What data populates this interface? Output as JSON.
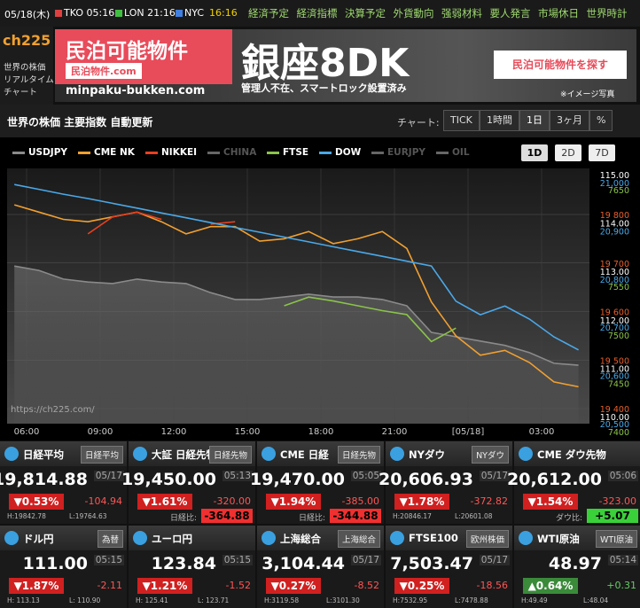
{
  "topbar": {
    "date": "05/18(木)",
    "clocks": [
      {
        "label": "TKO 05:16",
        "color": "#e04040"
      },
      {
        "label": "LON 21:16",
        "color": "#40c040"
      },
      {
        "label": "NYC",
        "time": "16:16",
        "color": "#4080e0"
      }
    ],
    "menu": [
      "経済予定",
      "経済指標",
      "決算予定",
      "外貨動向",
      "强弱材料",
      "要人発言",
      "市場休日",
      "世界時計"
    ]
  },
  "logo": {
    "title": "ch225",
    "tagline": [
      "世界の株価",
      "リアルタイム",
      "チャート"
    ]
  },
  "ad": {
    "headline": "民泊可能物件",
    "site_badge": "民泊物件.com",
    "big": "銀座8DK",
    "sub": "管理人不在、スマートロック設置済み",
    "url": "minpaku-bukken.com",
    "button": "民泊可能物件を探す",
    "note": "※イメージ写真"
  },
  "chart": {
    "title": "世界の株価 主要指数 自動更新",
    "range_label": "チャート:",
    "range_buttons": [
      "TICK",
      "1時間",
      "1日",
      "3ヶ月",
      "%"
    ],
    "selected_range": 2,
    "period_buttons": [
      "1D",
      "2D",
      "7D"
    ],
    "selected_period": 0,
    "watermark": "https://ch225.com/",
    "x_labels": [
      "06:00",
      "09:00",
      "12:00",
      "15:00",
      "18:00",
      "21:00",
      "[05/18]",
      "03:00"
    ],
    "axes": [
      {
        "color": "#e8602c",
        "ticks": [
          {
            "value": 19800,
            "label": "19 800"
          },
          {
            "value": 19700,
            "label": "19 700"
          },
          {
            "value": 19600,
            "label": "19 600"
          },
          {
            "value": 19500,
            "label": "19 500"
          },
          {
            "value": 19400,
            "label": "19 400"
          }
        ]
      },
      {
        "color": "#ffffff",
        "ticks": [
          {
            "value": 115,
            "label": "115.00"
          },
          {
            "value": 114,
            "label": "114.00"
          },
          {
            "value": 113,
            "label": "113.00"
          },
          {
            "value": 112,
            "label": "112.00"
          },
          {
            "value": 111,
            "label": "111.00"
          },
          {
            "value": 110,
            "label": "110.00"
          }
        ]
      },
      {
        "color": "#4aa8e8",
        "ticks": [
          {
            "value": 21000,
            "label": "21,000"
          },
          {
            "value": 20900,
            "label": "20,900"
          },
          {
            "value": 20800,
            "label": "20,800"
          },
          {
            "value": 20700,
            "label": "20,700"
          },
          {
            "value": 20600,
            "label": "20,600"
          },
          {
            "value": 20500,
            "label": "20,500"
          }
        ]
      },
      {
        "color": "#8bc34a",
        "ticks": [
          7650,
          7550,
          7500,
          7450,
          7400
        ]
      }
    ],
    "legend": [
      {
        "name": "USDJPY",
        "color": "#8a8a8a",
        "active": true,
        "axis": 1,
        "area": true,
        "values": [
          113.11,
          113.02,
          112.84,
          112.78,
          112.75,
          112.84,
          112.78,
          112.75,
          112.56,
          112.42,
          112.42,
          112.47,
          112.53,
          112.47,
          112.47,
          112.42,
          112.29,
          111.74,
          111.65,
          111.56,
          111.47,
          111.32,
          111.1,
          111.06
        ]
      },
      {
        "name": "CME NK",
        "color": "#f0a030",
        "active": true,
        "axis": 0,
        "values": [
          19820,
          19805,
          19790,
          19785,
          19795,
          19805,
          19785,
          19760,
          19775,
          19775,
          19745,
          19750,
          19765,
          19740,
          19750,
          19765,
          19730,
          19620,
          19550,
          19510,
          19520,
          19495,
          19455,
          19445
        ]
      },
      {
        "name": "NIKKEI",
        "color": "#e84020",
        "active": true,
        "axis": 0,
        "values": [
          null,
          null,
          null,
          19760,
          19795,
          19805,
          19790,
          null,
          19780,
          19785,
          null,
          null,
          null,
          null,
          null,
          null,
          null,
          null,
          null,
          null,
          null,
          null,
          null,
          null
        ]
      },
      {
        "name": "CHINA",
        "color": "#666666",
        "active": false
      },
      {
        "name": "FTSE",
        "color": "#8bc34a",
        "active": true,
        "axis": 3,
        "values": [
          null,
          null,
          null,
          null,
          null,
          null,
          null,
          null,
          null,
          null,
          null,
          7530,
          7539,
          7535,
          7530,
          7525,
          7521,
          7493,
          7507,
          null,
          null,
          null,
          null,
          null
        ]
      },
      {
        "name": "DOW",
        "color": "#4aa8e8",
        "active": true,
        "axis": 2,
        "values": [
          20996,
          20986,
          20976,
          20967,
          20957,
          20947,
          20937,
          20927,
          20917,
          20907,
          20897,
          20887,
          20877,
          20867,
          20857,
          20847,
          20837,
          20827,
          20754,
          20726,
          20744,
          20717,
          20680,
          20653
        ]
      },
      {
        "name": "EURJPY",
        "color": "#666666",
        "active": false
      },
      {
        "name": "OIL",
        "color": "#666666",
        "active": false
      }
    ]
  },
  "tiles": [
    {
      "name": "日経平均",
      "button": "日経平均",
      "value": "19,814.88",
      "time": "05/17",
      "change_pct": "▼0.53%",
      "trend": "down",
      "change": "-104.94",
      "high": "H:19842.78",
      "low": "L:19764.63"
    },
    {
      "name": "大証 日経先物",
      "button": "日経先物",
      "value": "19,450.00",
      "time": "05:13",
      "change_pct": "▼1.61%",
      "trend": "down",
      "change": "-320.00",
      "ratio_label": "日経比:",
      "ratio": "-364.88",
      "ratio_trend": "down"
    },
    {
      "name": "CME 日経",
      "button": "日経先物",
      "value": "19,470.00",
      "time": "05:05",
      "change_pct": "▼1.94%",
      "trend": "down",
      "change": "-385.00",
      "ratio_label": "日経比:",
      "ratio": "-344.88",
      "ratio_trend": "down"
    },
    {
      "name": "NYダウ",
      "button": "NYダウ",
      "value": "20,606.93",
      "time": "05/17",
      "change_pct": "▼1.78%",
      "trend": "down",
      "change": "-372.82",
      "high": "H:20846.17",
      "low": "L:20601.08"
    },
    {
      "name": "CME ダウ先物",
      "value": "20,612.00",
      "time": "05:06",
      "change_pct": "▼1.54%",
      "trend": "down",
      "change": "-323.00",
      "ratio_label": "ダウ比:",
      "ratio": "+5.07",
      "ratio_trend": "up"
    },
    {
      "name": "ドル円",
      "button": "為替",
      "value": "111.00",
      "time": "05:15",
      "change_pct": "▼1.87%",
      "trend": "down",
      "change": "-2.11",
      "high": "H: 113.13",
      "low": "L: 110.90"
    },
    {
      "name": "ユーロ円",
      "value": "123.84",
      "time": "05:15",
      "change_pct": "▼1.21%",
      "trend": "down",
      "change": "-1.52",
      "high": "H: 125.41",
      "low": "L: 123.71"
    },
    {
      "name": "上海総合",
      "button": "上海総合",
      "value": "3,104.44",
      "time": "05/17",
      "change_pct": "▼0.27%",
      "trend": "down",
      "change": "-8.52",
      "high": "H:3119.58",
      "low": "L:3101.30"
    },
    {
      "name": "FTSE100",
      "button": "欧州株価",
      "value": "7,503.47",
      "time": "05/17",
      "change_pct": "▼0.25%",
      "trend": "down",
      "change": "-18.56",
      "high": "H:7532.95",
      "low": "L:7478.88"
    },
    {
      "name": "WTI原油",
      "button": "WTI原油",
      "value": "48.97",
      "time": "05:14",
      "change_pct": "▲0.64%",
      "trend": "up",
      "change": "+0.31",
      "high": "H:49.49",
      "low": "L:48.04"
    }
  ]
}
